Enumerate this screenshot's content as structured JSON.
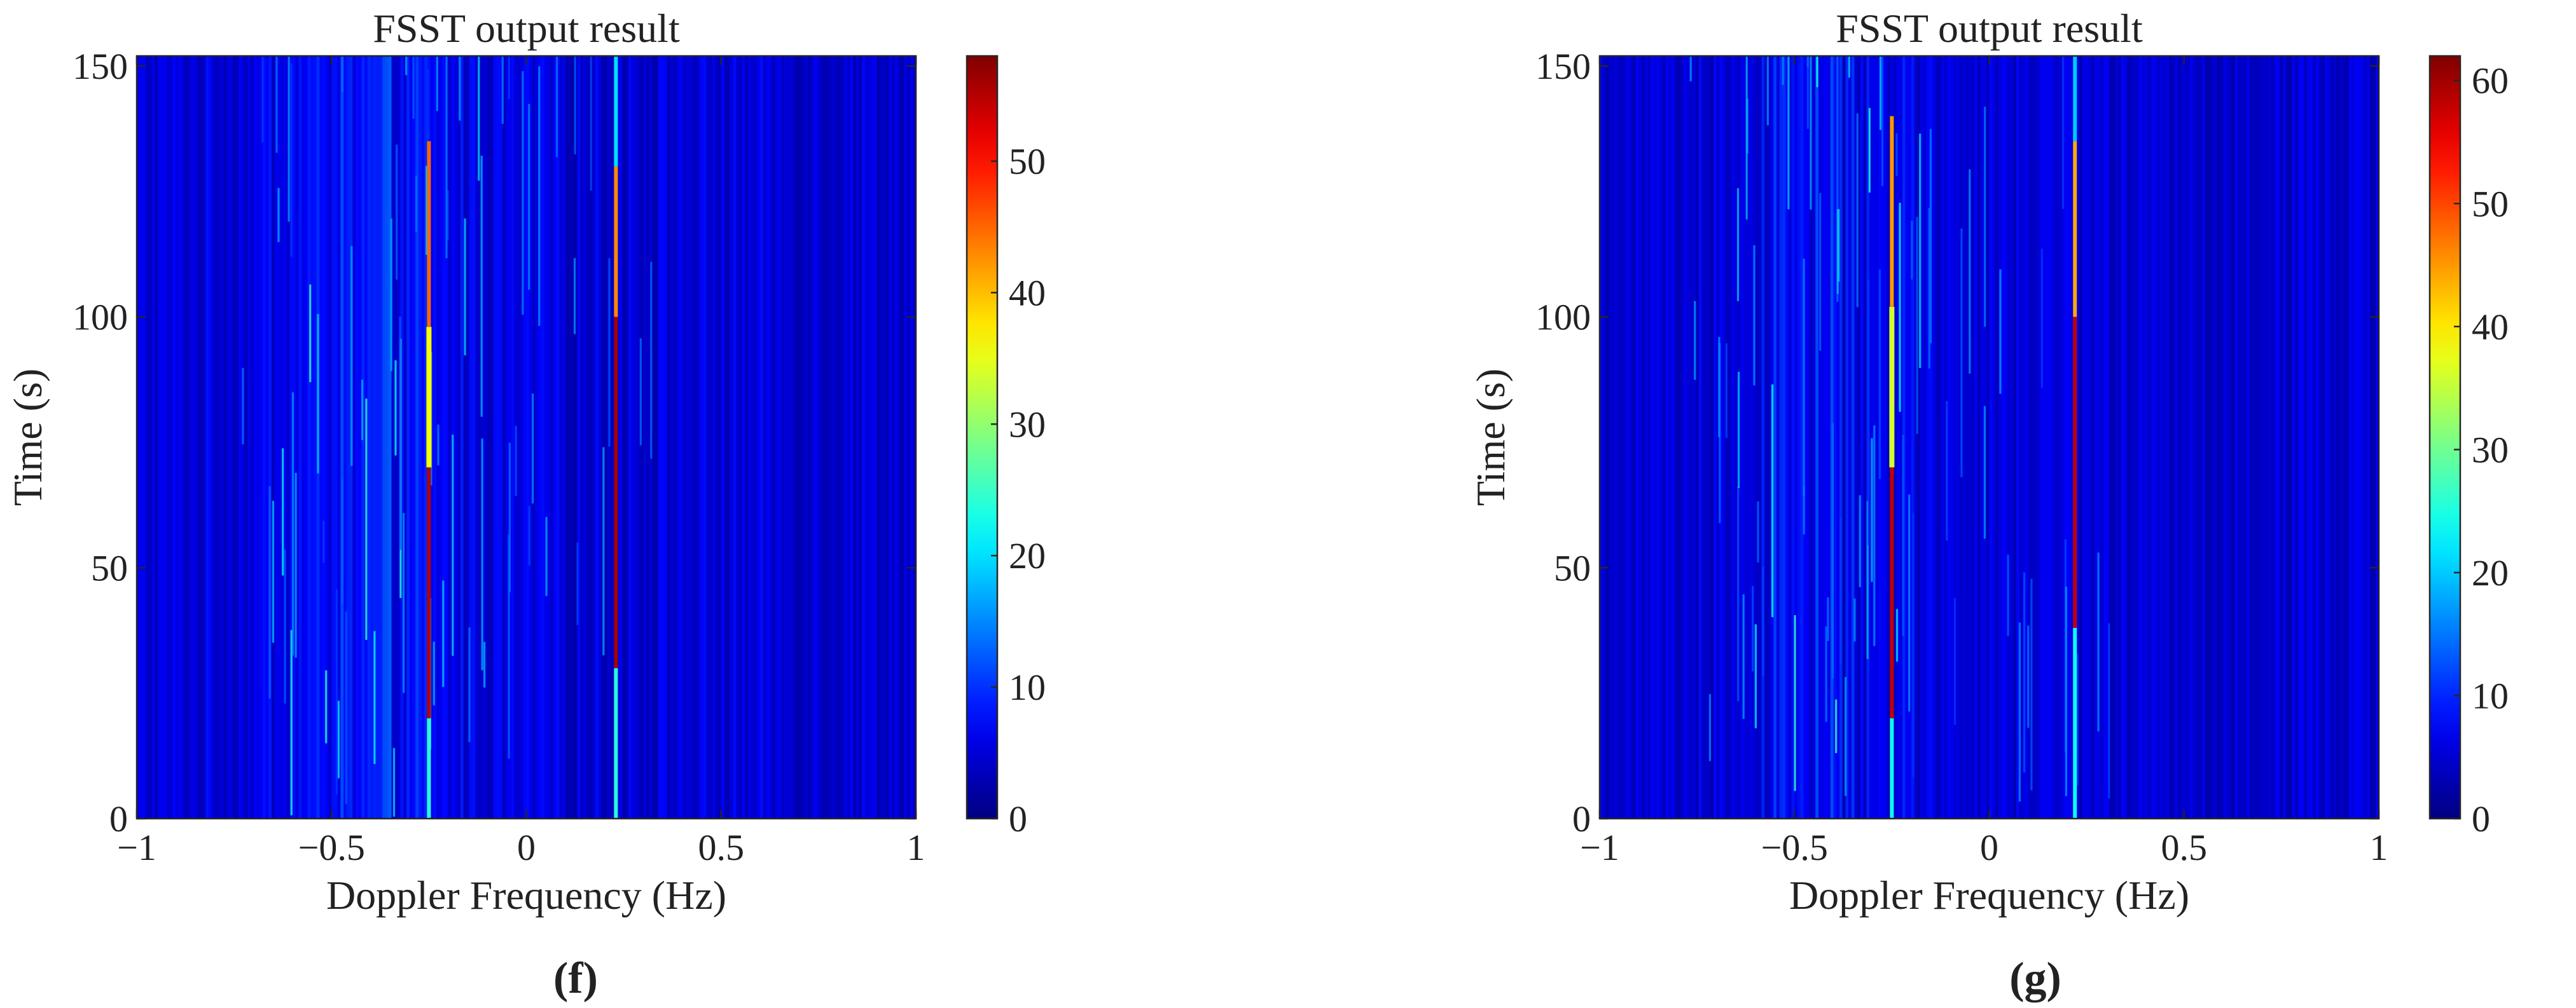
{
  "chart_data": [
    {
      "type": "heatmap",
      "title": "FSST output result",
      "xlabel": "Doppler Frequency (Hz)",
      "ylabel": "Time (s)",
      "panel_label": "(f)",
      "xlim": [
        -1,
        1
      ],
      "ylim": [
        0,
        152
      ],
      "xticks": [
        -1,
        -0.5,
        0,
        0.5,
        1
      ],
      "xtick_labels": [
        "−1",
        "−0.5",
        "0",
        "0.5",
        "1"
      ],
      "yticks": [
        0,
        50,
        100,
        150
      ],
      "ytick_labels": [
        "0",
        "50",
        "100",
        "150"
      ],
      "colorbar": {
        "range": [
          0,
          58
        ],
        "ticks": [
          0,
          10,
          20,
          30,
          40,
          50
        ],
        "tick_labels": [
          "0",
          "10",
          "20",
          "30",
          "40",
          "50"
        ],
        "colormap": "jet"
      },
      "background_value": 5,
      "ridges": [
        {
          "freq": -0.25,
          "segments": [
            {
              "t0": 0,
              "t1": 20,
              "value": 24
            },
            {
              "t0": 20,
              "t1": 70,
              "value": 55
            },
            {
              "t0": 70,
              "t1": 98,
              "value": 36
            },
            {
              "t0": 98,
              "t1": 135,
              "value": 45
            }
          ]
        },
        {
          "freq": 0.23,
          "segments": [
            {
              "t0": 0,
              "t1": 30,
              "value": 24
            },
            {
              "t0": 30,
              "t1": 100,
              "value": 56
            },
            {
              "t0": 100,
              "t1": 130,
              "value": 43
            },
            {
              "t0": 130,
              "t1": 152,
              "value": 20
            }
          ]
        }
      ]
    },
    {
      "type": "heatmap",
      "title": "FSST output result",
      "xlabel": "Doppler Frequency (Hz)",
      "ylabel": "Time (s)",
      "panel_label": "(g)",
      "xlim": [
        -1,
        1
      ],
      "ylim": [
        0,
        152
      ],
      "xticks": [
        -1,
        -0.5,
        0,
        0.5,
        1
      ],
      "xtick_labels": [
        "−1",
        "−0.5",
        "0",
        "0.5",
        "1"
      ],
      "yticks": [
        0,
        50,
        100,
        150
      ],
      "ytick_labels": [
        "0",
        "50",
        "100",
        "150"
      ],
      "colorbar": {
        "range": [
          0,
          62
        ],
        "ticks": [
          0,
          10,
          20,
          30,
          40,
          50,
          60
        ],
        "tick_labels": [
          "0",
          "10",
          "20",
          "30",
          "40",
          "50",
          "60"
        ],
        "colormap": "jet"
      },
      "background_value": 5,
      "ridges": [
        {
          "freq": -0.25,
          "segments": [
            {
              "t0": 0,
              "t1": 20,
              "value": 24
            },
            {
              "t0": 20,
              "t1": 70,
              "value": 58
            },
            {
              "t0": 70,
              "t1": 102,
              "value": 36
            },
            {
              "t0": 102,
              "t1": 140,
              "value": 45
            }
          ]
        },
        {
          "freq": 0.22,
          "segments": [
            {
              "t0": 0,
              "t1": 38,
              "value": 24
            },
            {
              "t0": 38,
              "t1": 100,
              "value": 58
            },
            {
              "t0": 100,
              "t1": 135,
              "value": 44
            },
            {
              "t0": 135,
              "t1": 152,
              "value": 20
            }
          ]
        }
      ]
    }
  ]
}
